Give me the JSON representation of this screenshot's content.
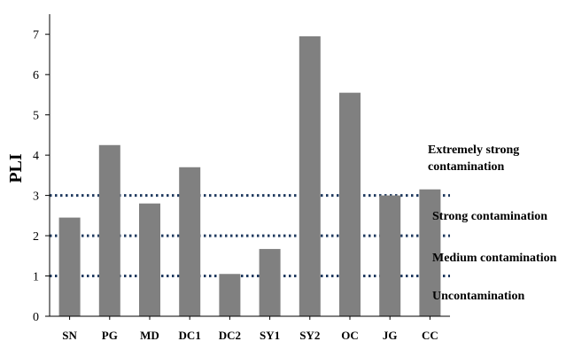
{
  "chart_data": {
    "type": "bar",
    "categories": [
      "SN",
      "PG",
      "MD",
      "DC1",
      "DC2",
      "SY1",
      "SY2",
      "OC",
      "JG",
      "CC"
    ],
    "values": [
      2.45,
      4.25,
      2.8,
      3.7,
      1.05,
      1.67,
      6.95,
      5.55,
      3.0,
      3.15
    ],
    "ylabel": "PLI",
    "xlabel": "",
    "title": "",
    "ylim": [
      0,
      7.5
    ],
    "yticks": [
      "0",
      "1",
      "2",
      "3",
      "4",
      "5",
      "6",
      "7"
    ],
    "grid": false,
    "bar_color": "#808080",
    "threshold_lines": [
      {
        "value": 1,
        "color": "#1f3a5f"
      },
      {
        "value": 2,
        "color": "#1f3a5f"
      },
      {
        "value": 3,
        "color": "#1f3a5f"
      }
    ],
    "zones": [
      {
        "lines": [
          "Extremely strong",
          "contamination"
        ]
      },
      {
        "lines": [
          "Strong contamination"
        ]
      },
      {
        "lines": [
          "Medium contamination"
        ]
      },
      {
        "lines": [
          "Uncontamination"
        ]
      }
    ]
  }
}
